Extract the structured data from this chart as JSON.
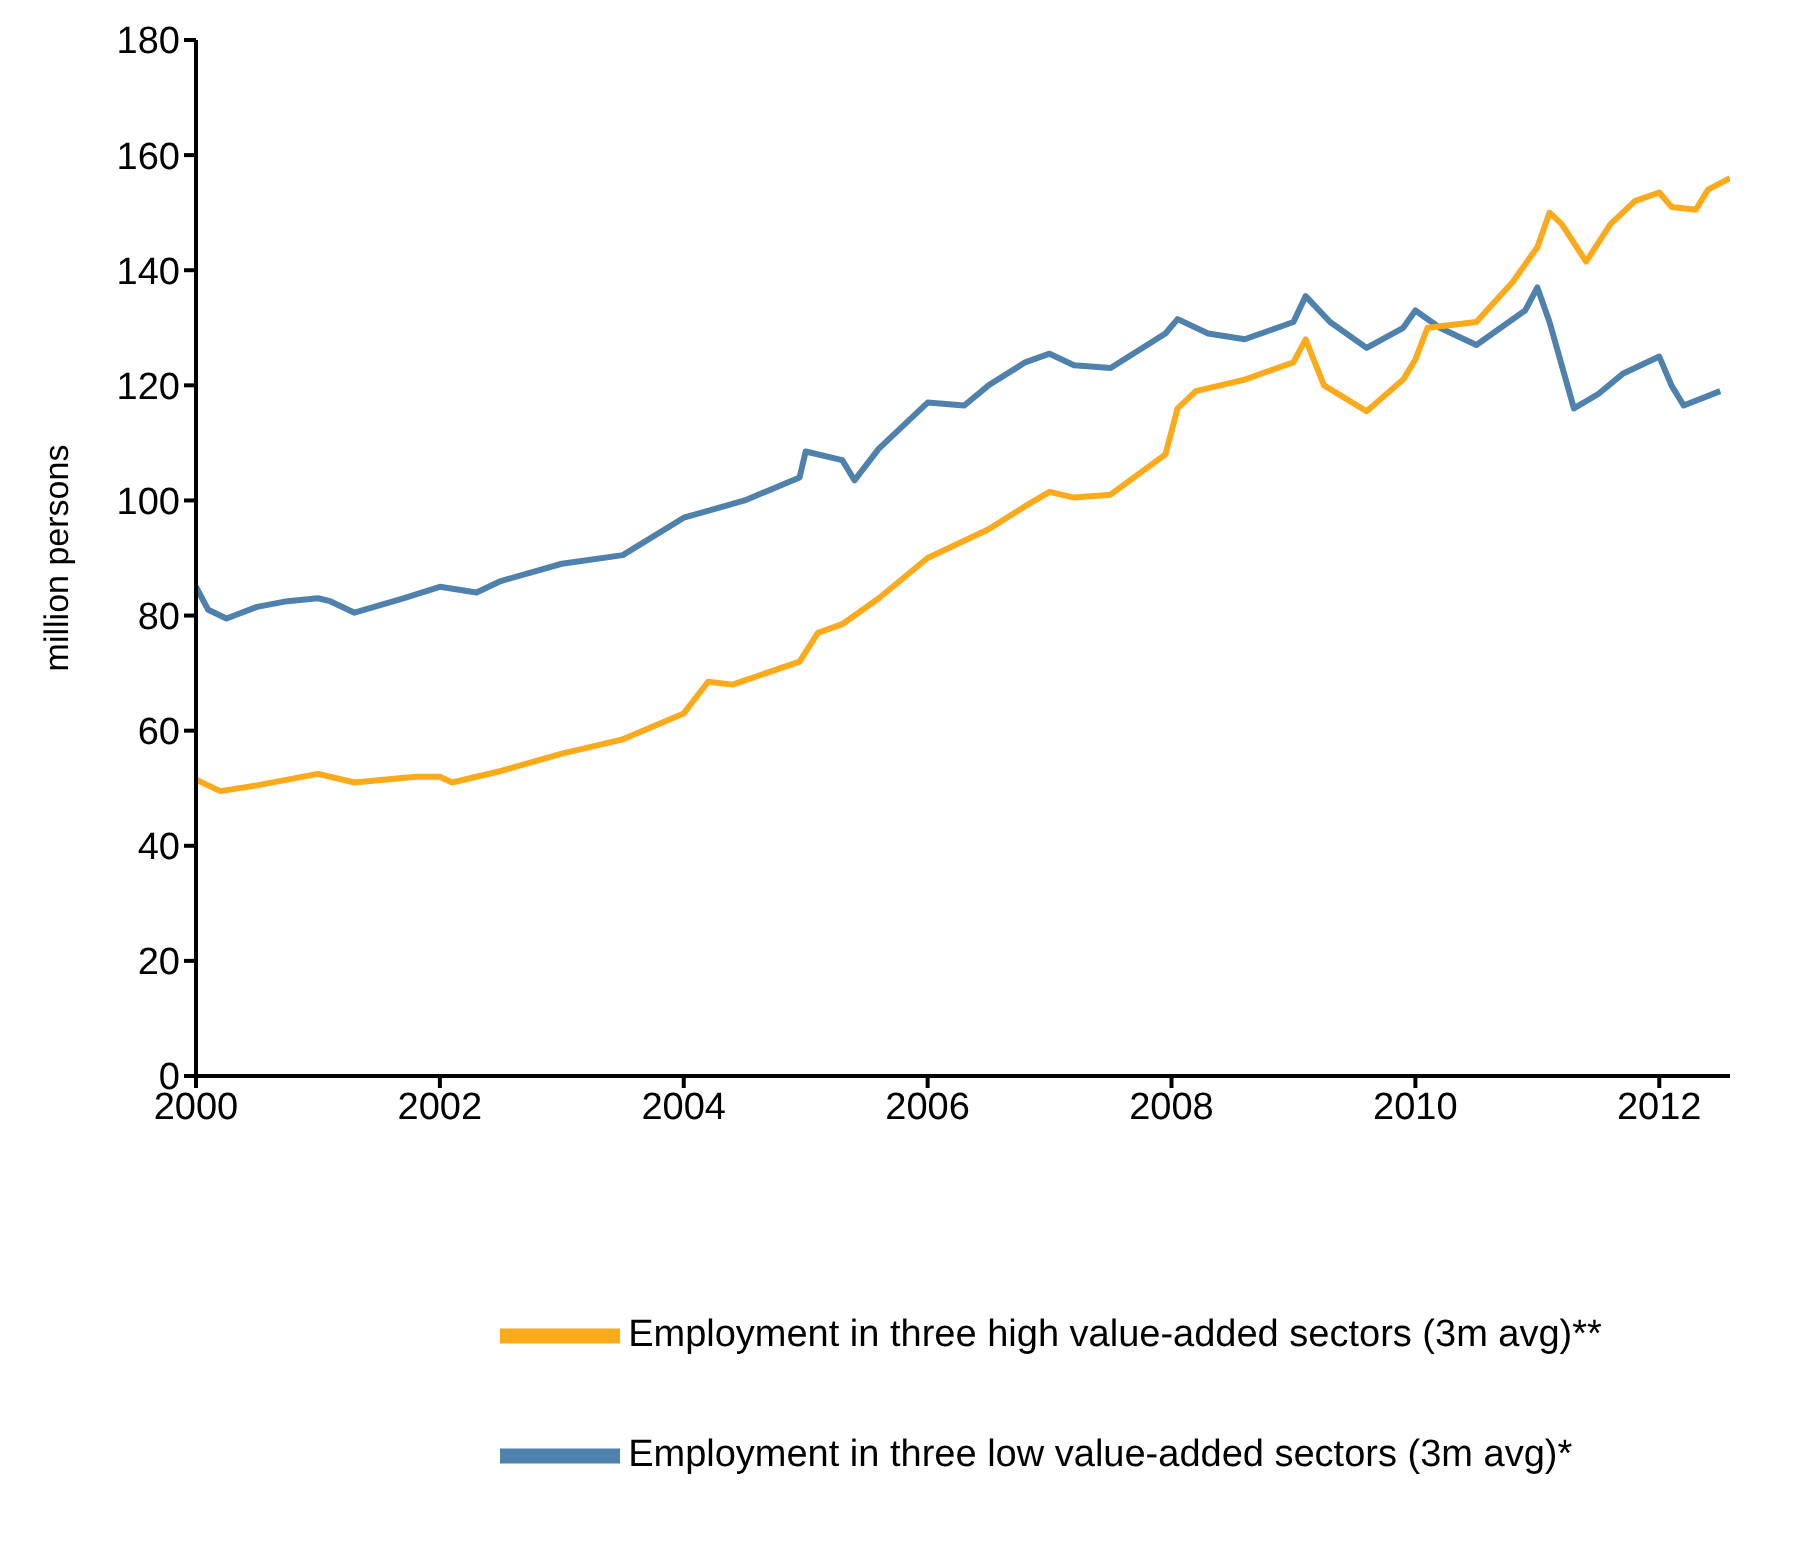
{
  "chart_data": {
    "type": "line",
    "ylabel": "million persons",
    "xlim": [
      2000,
      2012.58
    ],
    "xticks": [
      2000,
      2002,
      2004,
      2006,
      2008,
      2010,
      2012
    ],
    "ylim": [
      0,
      180
    ],
    "yticks": [
      0,
      20,
      40,
      60,
      80,
      100,
      120,
      140,
      160,
      180
    ],
    "grid": false,
    "legend": "bottom",
    "marker": "none",
    "line_style": "solid",
    "series": [
      {
        "name": "Employment in three low value-added sectors (3m avg)*",
        "color": "#4f81ad",
        "x": [
          2000,
          2000.1,
          2000.25,
          2000.5,
          2000.75,
          2001,
          2001.1,
          2001.3,
          2001.7,
          2002,
          2002.3,
          2002.5,
          2003,
          2003.5,
          2004,
          2004.5,
          2004.95,
          2005,
          2005.3,
          2005.4,
          2005.6,
          2006,
          2006.3,
          2006.5,
          2006.8,
          2007,
          2007.2,
          2007.5,
          2007.95,
          2008.05,
          2008.3,
          2008.6,
          2009,
          2009.1,
          2009.3,
          2009.6,
          2009.9,
          2010,
          2010.2,
          2010.5,
          2010.9,
          2011,
          2011.1,
          2011.3,
          2011.5,
          2011.7,
          2012,
          2012.1,
          2012.2,
          2012.5
        ],
        "values": [
          85,
          81,
          79.5,
          81.5,
          82.5,
          83,
          82.5,
          80.5,
          83,
          85,
          84,
          86,
          89,
          90.5,
          97,
          100,
          104,
          108.5,
          107,
          103.5,
          109,
          117,
          116.5,
          120,
          124,
          125.5,
          123.5,
          123,
          129,
          131.5,
          129,
          128,
          131,
          135.5,
          131,
          126.5,
          130,
          133,
          130,
          127,
          133,
          137,
          131,
          116,
          118.5,
          122,
          125,
          120,
          116.5,
          119
        ]
      },
      {
        "name": "Employment in three high value-added sectors (3m avg)**",
        "color": "#fbaa1c",
        "x": [
          2000,
          2000.2,
          2000.5,
          2001,
          2001.3,
          2001.8,
          2002,
          2002.1,
          2002.5,
          2003,
          2003.5,
          2004,
          2004.2,
          2004.4,
          2004.95,
          2005.1,
          2005.3,
          2005.6,
          2006,
          2006.5,
          2006.8,
          2007,
          2007.2,
          2007.5,
          2007.95,
          2008.05,
          2008.2,
          2008.6,
          2009,
          2009.1,
          2009.25,
          2009.6,
          2009.9,
          2010,
          2010.1,
          2010.5,
          2010.8,
          2011,
          2011.1,
          2011.2,
          2011.4,
          2011.6,
          2011.8,
          2012,
          2012.1,
          2012.3,
          2012.4,
          2012.58
        ],
        "values": [
          51.5,
          49.5,
          50.5,
          52.5,
          51,
          52,
          52,
          51,
          53,
          56,
          58.5,
          63,
          68.5,
          68,
          72,
          77,
          78.5,
          83,
          90,
          95,
          99,
          101.5,
          100.5,
          101,
          108,
          116,
          119,
          121,
          124,
          128,
          120,
          115.5,
          121,
          124.5,
          130,
          131,
          138,
          144,
          150,
          148,
          141.5,
          148,
          152,
          153.5,
          151,
          150.5,
          154,
          156
        ]
      }
    ]
  }
}
